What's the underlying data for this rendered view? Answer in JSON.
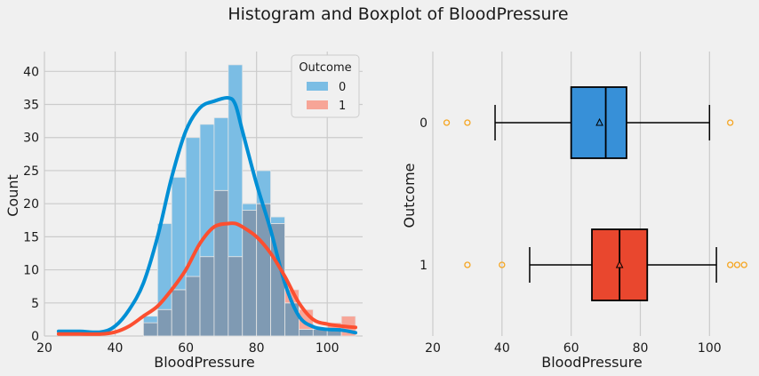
{
  "title": "Histogram and Boxplot of BloodPressure",
  "colors": {
    "background": "#f0f0f0",
    "grid": "#cbcbcb",
    "outcome0": "#008fd5",
    "outcome0_bar": "#7bbde4",
    "outcome1": "#fc4f30",
    "outcome1_bar": "#f7a597",
    "overlap_bar": "#7f9ab3",
    "box0": "#3790d8",
    "box1": "#e9472e",
    "flier": "#f5a623"
  },
  "chart_data": [
    {
      "type": "bar",
      "subtype": "histogram-with-kde",
      "xlabel": "BloodPressure",
      "ylabel": "Count",
      "xlim": [
        20,
        110
      ],
      "ylim": [
        0,
        43
      ],
      "xticks": [
        20,
        40,
        60,
        80,
        100
      ],
      "yticks": [
        0,
        5,
        10,
        15,
        20,
        25,
        30,
        35,
        40
      ],
      "grid": true,
      "legend": {
        "title": "Outcome",
        "placement": "top-right",
        "entries": [
          "0",
          "1"
        ]
      },
      "bin_edges": [
        48,
        52,
        56,
        60,
        64,
        68,
        72,
        76,
        80,
        84,
        88,
        92,
        96,
        100,
        104,
        108
      ],
      "series": [
        {
          "name": "0",
          "counts": [
            3,
            17,
            24,
            30,
            32,
            33,
            41,
            20,
            25,
            18,
            5,
            1,
            1,
            1,
            0
          ],
          "kde": {
            "x": [
              24,
              30,
              36,
              40,
              44,
              48,
              52,
              56,
              60,
              64,
              68,
              72,
              74,
              76,
              80,
              84,
              88,
              92,
              96,
              100,
              104,
              108
            ],
            "y": [
              0.7,
              0.7,
              0.6,
              1.5,
              4,
              8,
              15,
              24,
              31,
              34.5,
              35.5,
              36,
              35,
              31,
              23,
              16,
              8,
              3,
              1.4,
              1,
              0.9,
              0.5
            ]
          }
        },
        {
          "name": "1",
          "counts": [
            2,
            4,
            7,
            9,
            12,
            22,
            12,
            19,
            20,
            17,
            7,
            4,
            1,
            2,
            3
          ],
          "kde": {
            "x": [
              24,
              30,
              36,
              40,
              44,
              48,
              52,
              56,
              60,
              64,
              68,
              72,
              74,
              76,
              80,
              84,
              88,
              92,
              96,
              100,
              104,
              108
            ],
            "y": [
              0.3,
              0.3,
              0.3,
              0.6,
              1.5,
              3,
              4.5,
              7,
              10,
              14,
              16.5,
              17,
              17,
              16.5,
              15,
              12.5,
              9,
              5,
              2.5,
              1.8,
              1.5,
              1.3
            ]
          }
        }
      ]
    },
    {
      "type": "boxplot",
      "xlabel": "BloodPressure",
      "ylabel": "Outcome",
      "xlim": [
        20,
        112
      ],
      "xticks": [
        20,
        40,
        60,
        80,
        100
      ],
      "categories": [
        "0",
        "1"
      ],
      "grid": true,
      "boxes": [
        {
          "category": "0",
          "whisker_low": 38,
          "q1": 60,
          "median": 70,
          "q3": 76,
          "whisker_high": 100,
          "mean": 68.2,
          "fliers": [
            24,
            30,
            106
          ]
        },
        {
          "category": "1",
          "whisker_low": 48,
          "q1": 66,
          "median": 74,
          "q3": 82,
          "whisker_high": 102,
          "mean": 74,
          "fliers": [
            30,
            40,
            106,
            108,
            110
          ]
        }
      ]
    }
  ]
}
